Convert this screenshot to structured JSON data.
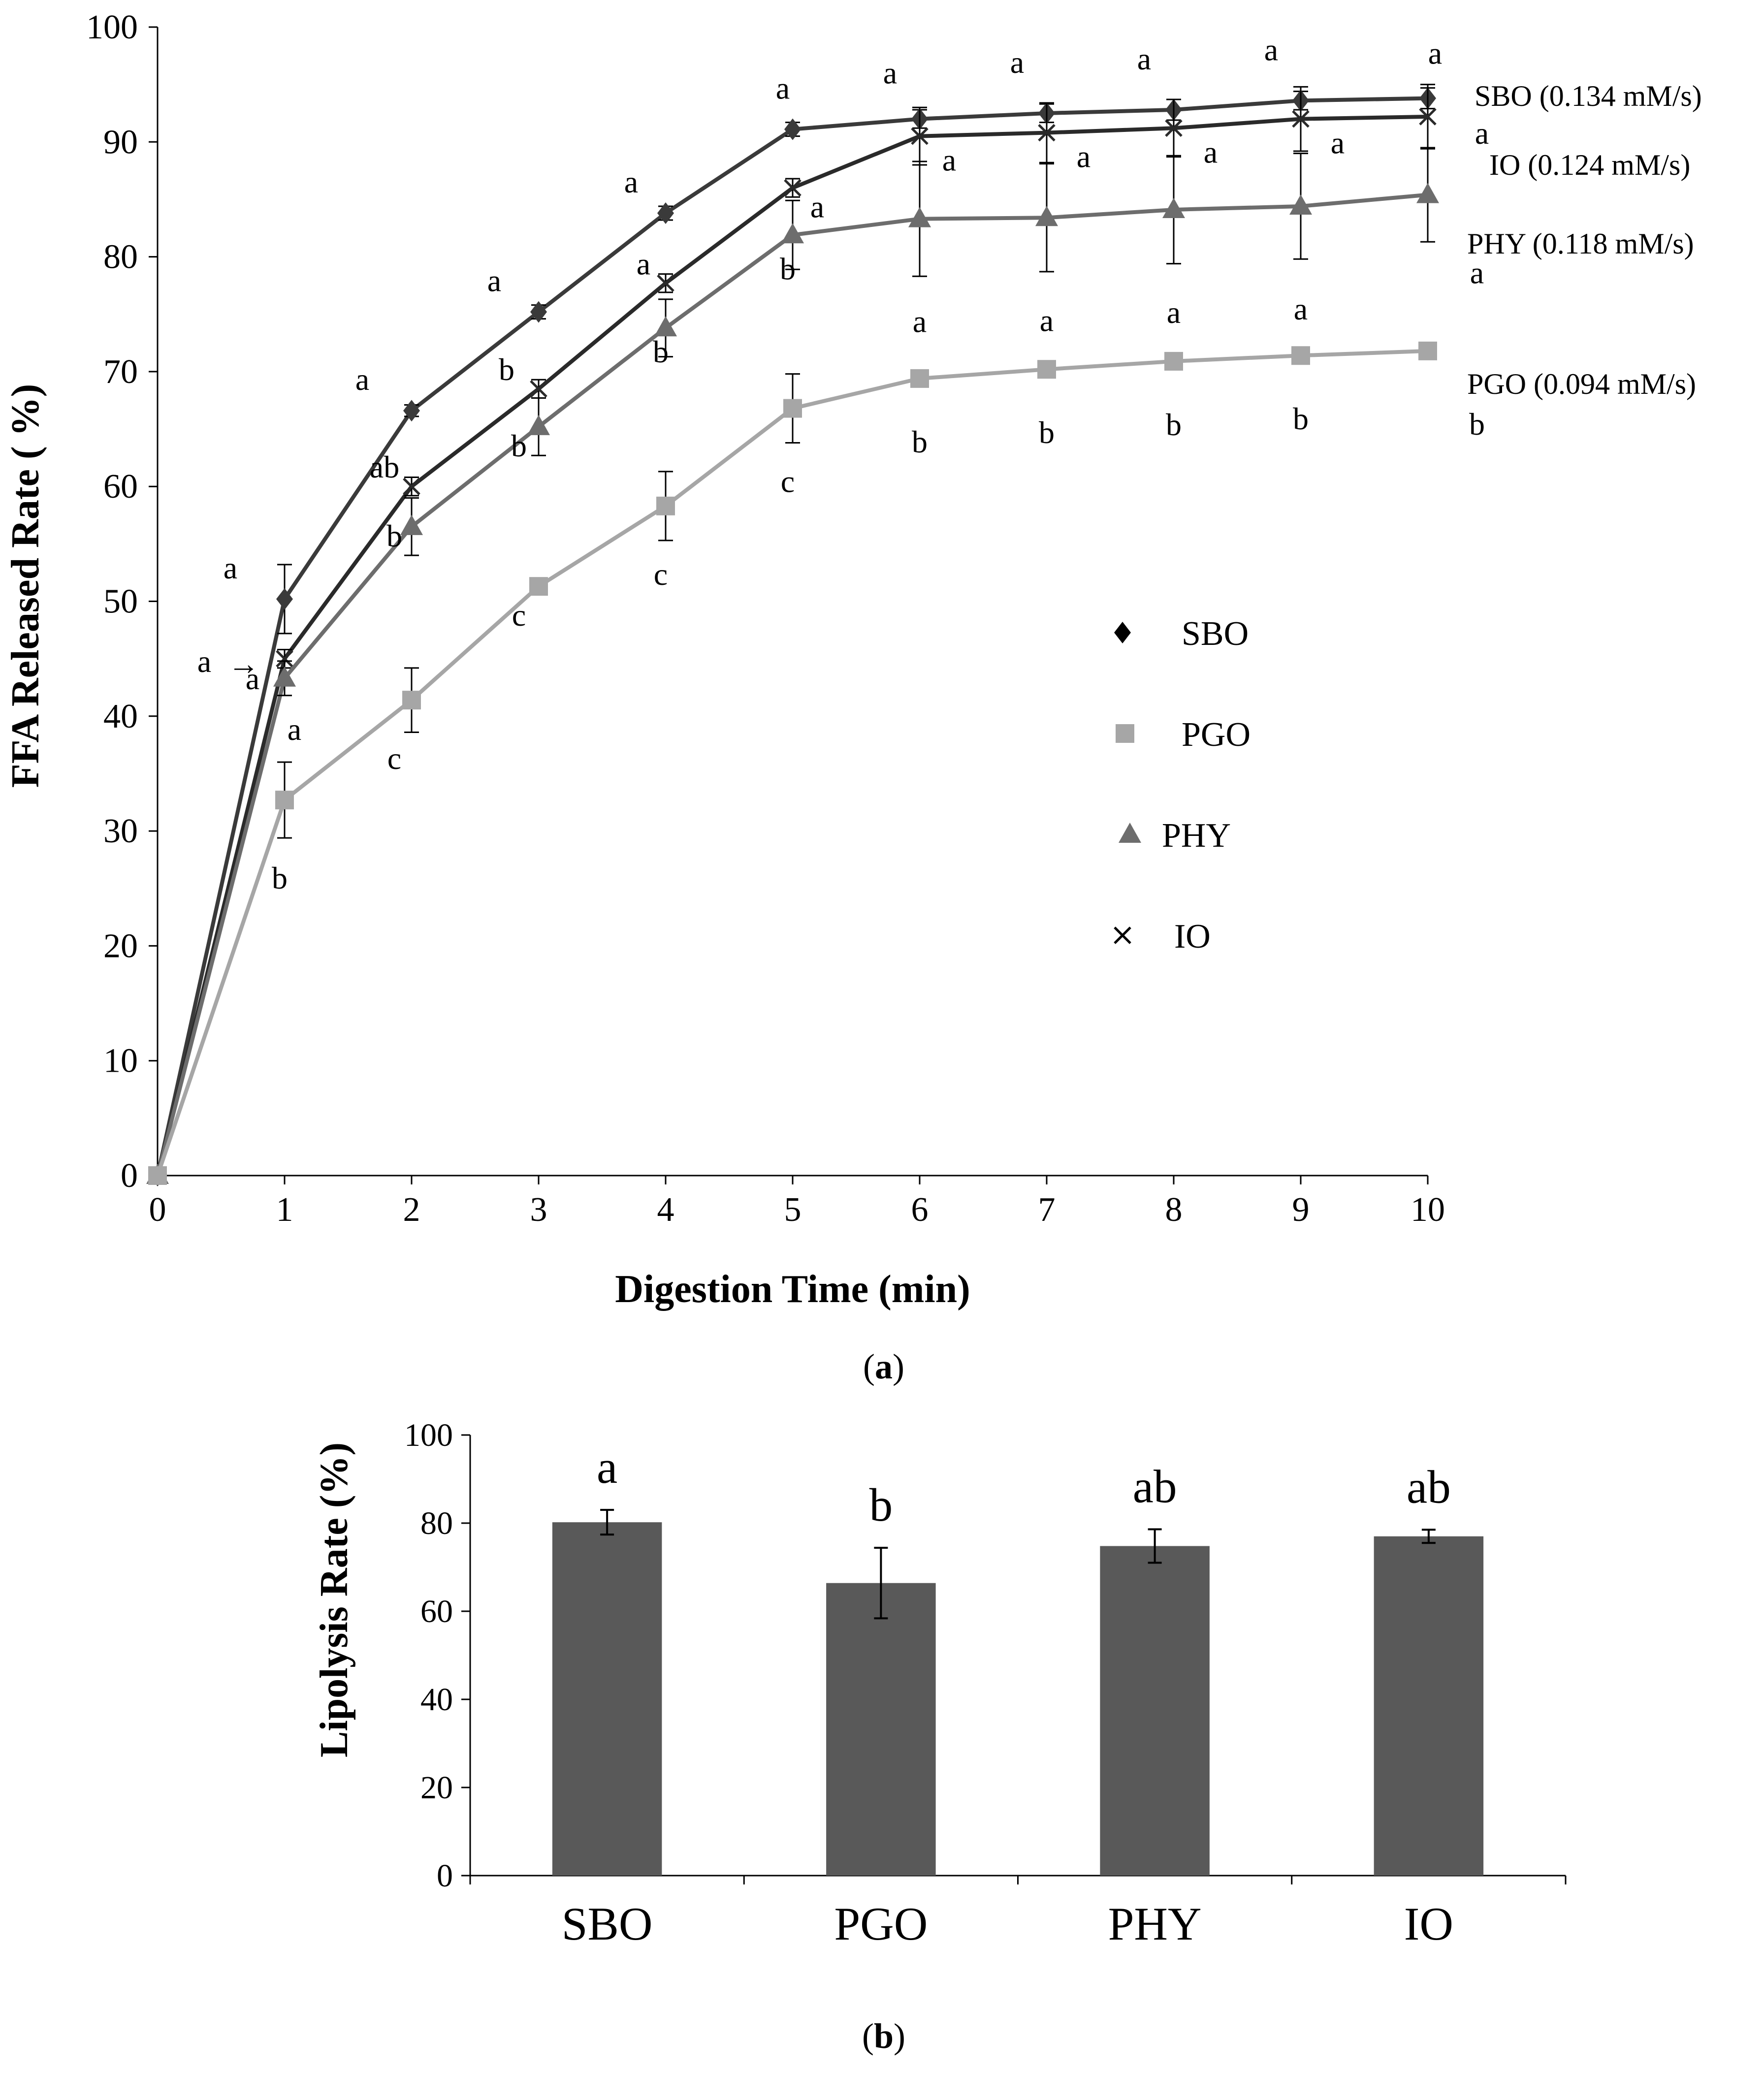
{
  "chart_data": [
    {
      "type": "line",
      "panel_label": "a",
      "xlabel": "Digestion Time (min)",
      "ylabel": "FFA Released Rate ( %)",
      "xlim": [
        0,
        10
      ],
      "ylim": [
        0,
        100
      ],
      "x": [
        0,
        1,
        2,
        3,
        4,
        5,
        6,
        7,
        8,
        9,
        10
      ],
      "x_ticks": [
        "0",
        "1",
        "2",
        "3",
        "4",
        "5",
        "6",
        "7",
        "8",
        "9",
        "10"
      ],
      "y_ticks": [
        "0",
        "10",
        "20",
        "30",
        "40",
        "50",
        "60",
        "70",
        "80",
        "90",
        "100"
      ],
      "legend": [
        "SBO",
        "PGO",
        "PHY",
        "IO"
      ],
      "legend_position": "center-right",
      "series": [
        {
          "name": "SBO",
          "marker": "diamond",
          "color": "#3a3a3a",
          "rate_label": "SBO (0.134 mM/s)",
          "values": [
            0,
            50.2,
            66.6,
            75.2,
            83.8,
            91.1,
            92.0,
            92.5,
            92.8,
            93.6,
            93.8
          ],
          "errors": [
            0,
            3.0,
            0.5,
            0.6,
            0.6,
            0.6,
            0.8,
            0.8,
            0.9,
            0.8,
            0.9
          ],
          "letters": [
            "",
            "a",
            "a",
            "a",
            "a",
            "a",
            "a",
            "a",
            "a",
            "a",
            "a"
          ]
        },
        {
          "name": "IO",
          "marker": "x",
          "color": "#2a2a2a",
          "rate_label": "IO (0.124 mM/s)",
          "values": [
            0,
            45.0,
            60.0,
            68.5,
            77.7,
            86.0,
            90.5,
            90.8,
            91.2,
            92.0,
            92.2
          ],
          "errors": [
            0,
            0.8,
            0.8,
            0.8,
            0.8,
            0.8,
            2.5,
            2.6,
            2.5,
            2.8,
            2.8
          ],
          "letters": [
            "",
            "a",
            "ab",
            "b",
            "a",
            "a",
            "a",
            "a",
            "a",
            "a",
            "a"
          ]
        },
        {
          "name": "PHY",
          "marker": "triangle",
          "color": "#6d6d6d",
          "rate_label": "PHY (0.118 mM/s)",
          "values": [
            0,
            43.3,
            56.5,
            65.2,
            73.8,
            81.9,
            83.3,
            83.4,
            84.1,
            84.4,
            85.4
          ],
          "errors": [
            0,
            1.5,
            2.5,
            2.5,
            2.5,
            3.0,
            5.0,
            4.7,
            4.7,
            4.6,
            4.1
          ],
          "letters": [
            "",
            "a",
            "b",
            "b",
            "b",
            "b",
            "a",
            "a",
            "a",
            "a",
            "a"
          ]
        },
        {
          "name": "PGO",
          "marker": "square",
          "color": "#a6a6a6",
          "rate_label": "PGO (0.094 mM/s)",
          "values": [
            0,
            32.7,
            41.4,
            51.3,
            58.3,
            66.8,
            69.4,
            70.2,
            70.9,
            71.4,
            71.8
          ],
          "errors": [
            0,
            3.3,
            2.8,
            0.5,
            3.0,
            3.0,
            0.5,
            0.5,
            0.5,
            0.5,
            0.5
          ],
          "letters": [
            "",
            "b",
            "c",
            "c",
            "c",
            "c",
            "b",
            "b",
            "b",
            "b",
            "b"
          ]
        }
      ],
      "annotation": {
        "text": "a",
        "arrow": "→",
        "x": 1,
        "y": 44.7
      }
    },
    {
      "type": "bar",
      "panel_label": "b",
      "xlabel": "",
      "ylabel": "Lipolysis Rate (%)",
      "ylim": [
        0,
        100
      ],
      "y_ticks": [
        "0",
        "20",
        "40",
        "60",
        "80",
        "100"
      ],
      "categories": [
        "SBO",
        "PGO",
        "PHY",
        "IO"
      ],
      "values": [
        80.2,
        66.4,
        74.8,
        77.0
      ],
      "errors": [
        2.8,
        8.0,
        3.8,
        1.5
      ],
      "letters": [
        "a",
        "b",
        "ab",
        "ab"
      ],
      "color": "#595959"
    }
  ]
}
